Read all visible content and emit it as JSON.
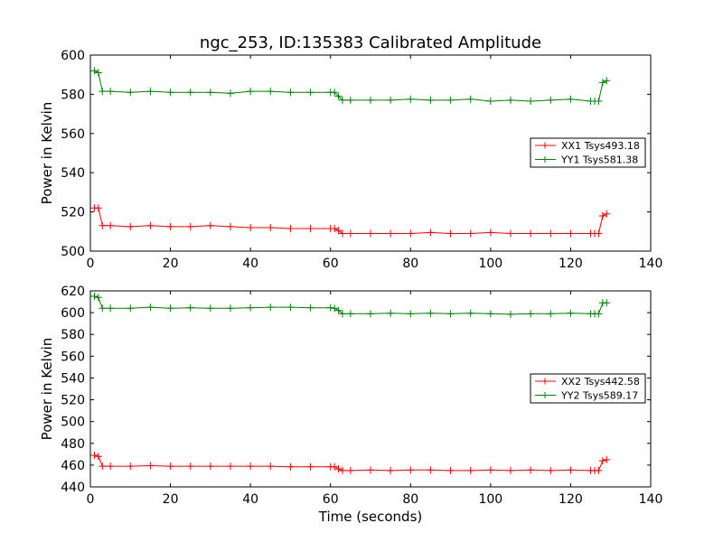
{
  "figure": {
    "title": "ngc_253, ID:135383 Calibrated Amplitude"
  },
  "colors": {
    "red": "#ff0000",
    "green": "#008000"
  },
  "chart_data": [
    {
      "type": "line",
      "title": "ngc_253, ID:135383 Calibrated Amplitude",
      "xlabel": "",
      "ylabel": "Power in Kelvin",
      "xlim": [
        0,
        140
      ],
      "ylim": [
        500,
        600
      ],
      "xticks": [
        0,
        20,
        40,
        60,
        80,
        100,
        120,
        140
      ],
      "yticks": [
        500,
        520,
        540,
        560,
        580,
        600
      ],
      "x_tick_labels": [
        "0",
        "20",
        "40",
        "60",
        "80",
        "100",
        "120",
        "140"
      ],
      "y_tick_labels": [
        "500",
        "520",
        "540",
        "560",
        "580",
        "600"
      ],
      "legend_placement": "center-right",
      "grid": false,
      "series": [
        {
          "name": "XX1 Tsys493.18",
          "color": "#ff0000",
          "x": [
            1,
            2,
            3,
            5,
            10,
            15,
            20,
            25,
            30,
            35,
            40,
            45,
            50,
            55,
            60,
            61,
            62,
            63,
            65,
            70,
            75,
            80,
            85,
            90,
            95,
            100,
            105,
            110,
            115,
            120,
            125,
            126,
            127,
            128,
            129
          ],
          "y": [
            522,
            522,
            513,
            513,
            512.5,
            513,
            512.5,
            512.5,
            513,
            512.5,
            512,
            512,
            511.5,
            511.5,
            511.5,
            511.5,
            510.5,
            509,
            509,
            509,
            509,
            509,
            509.5,
            509,
            509,
            509.5,
            509,
            509,
            509,
            509,
            509,
            509,
            509,
            518,
            519
          ]
        },
        {
          "name": "YY1 Tsys581.38",
          "color": "#008000",
          "x": [
            1,
            2,
            3,
            5,
            10,
            15,
            20,
            25,
            30,
            35,
            40,
            45,
            50,
            55,
            60,
            61,
            62,
            63,
            65,
            70,
            75,
            80,
            85,
            90,
            95,
            100,
            105,
            110,
            115,
            120,
            125,
            126,
            127,
            128,
            129
          ],
          "y": [
            592,
            591,
            581.5,
            581.5,
            581,
            581.5,
            581,
            581,
            581,
            580.5,
            581.5,
            581.5,
            581,
            581,
            581,
            581,
            579,
            577,
            577,
            577,
            577,
            577.5,
            577,
            577,
            577.5,
            576.5,
            577,
            576.5,
            577,
            577.5,
            576.5,
            576.5,
            576.5,
            586,
            587
          ]
        }
      ]
    },
    {
      "type": "line",
      "title": "",
      "xlabel": "Time (seconds)",
      "ylabel": "Power in Kelvin",
      "xlim": [
        0,
        140
      ],
      "ylim": [
        440,
        620
      ],
      "xticks": [
        0,
        20,
        40,
        60,
        80,
        100,
        120,
        140
      ],
      "yticks": [
        440,
        460,
        480,
        500,
        520,
        540,
        560,
        580,
        600,
        620
      ],
      "x_tick_labels": [
        "0",
        "20",
        "40",
        "60",
        "80",
        "100",
        "120",
        "140"
      ],
      "y_tick_labels": [
        "440",
        "460",
        "480",
        "500",
        "520",
        "540",
        "560",
        "580",
        "600",
        "620"
      ],
      "legend_placement": "center-right",
      "grid": false,
      "series": [
        {
          "name": "XX2 Tsys442.58",
          "color": "#ff0000",
          "x": [
            1,
            2,
            3,
            5,
            10,
            15,
            20,
            25,
            30,
            35,
            40,
            45,
            50,
            55,
            60,
            61,
            62,
            63,
            65,
            70,
            75,
            80,
            85,
            90,
            95,
            100,
            105,
            110,
            115,
            120,
            125,
            126,
            127,
            128,
            129
          ],
          "y": [
            469,
            468,
            459,
            459,
            459,
            459.5,
            459,
            459,
            459,
            459,
            459,
            459,
            458.5,
            458.5,
            458.5,
            458.5,
            456.5,
            455,
            455,
            455.5,
            455,
            455.5,
            455.5,
            455,
            455,
            455.5,
            455,
            455.5,
            455,
            455.5,
            455,
            455,
            455,
            464,
            465
          ]
        },
        {
          "name": "YY2 Tsys589.17",
          "color": "#008000",
          "x": [
            1,
            2,
            3,
            5,
            10,
            15,
            20,
            25,
            30,
            35,
            40,
            45,
            50,
            55,
            60,
            61,
            62,
            63,
            65,
            70,
            75,
            80,
            85,
            90,
            95,
            100,
            105,
            110,
            115,
            120,
            125,
            126,
            127,
            128,
            129
          ],
          "y": [
            615,
            614,
            604,
            604,
            604,
            605,
            604,
            604.5,
            604,
            604,
            604.5,
            605,
            605,
            604.5,
            604.5,
            604,
            602,
            599,
            599,
            599,
            599.5,
            599,
            599.5,
            599,
            599.5,
            599,
            598.5,
            599,
            599,
            599.5,
            599,
            599,
            599,
            609,
            609
          ]
        }
      ]
    }
  ]
}
